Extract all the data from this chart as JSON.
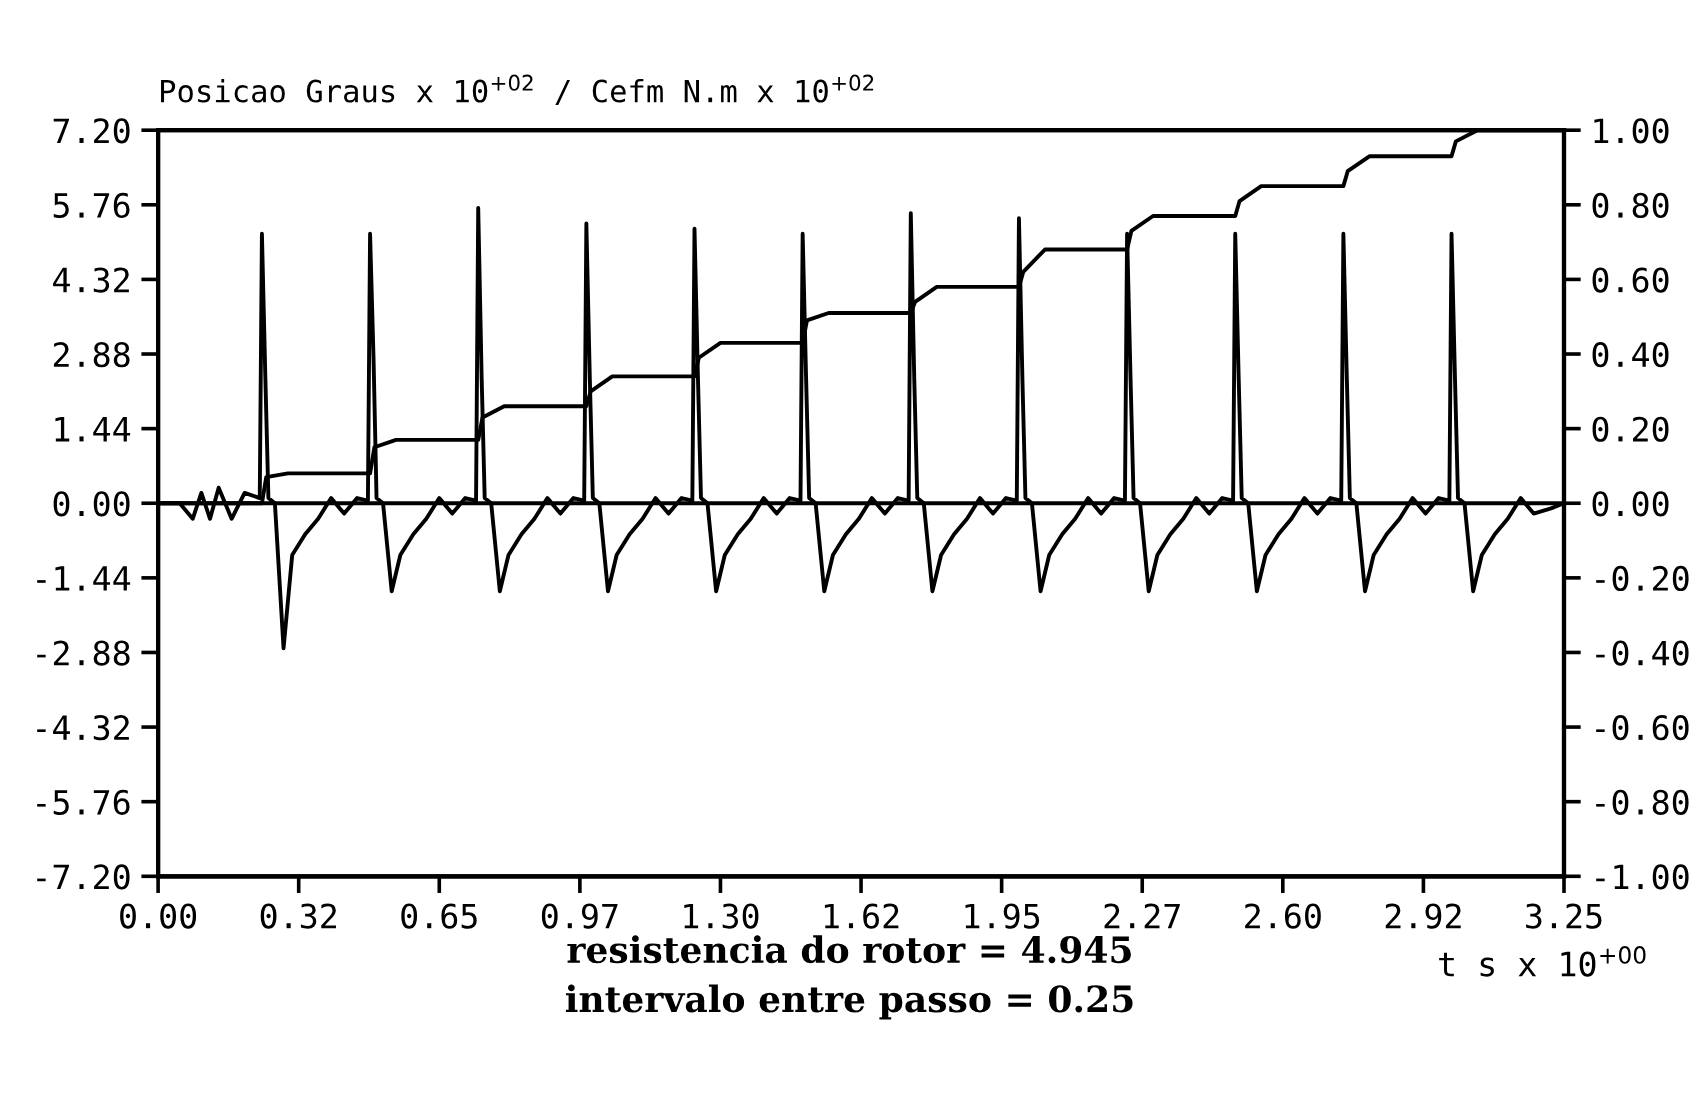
{
  "chart_data": {
    "type": "line",
    "title": "Posicao Graus x 10$^{+02}$ / Cefm N.m x 10$^{+02}$",
    "xlabel": "t s x 10$^{+00}$",
    "annotations": [
      "resistencia do rotor = 4.945",
      "intervalo entre passo = 0.25"
    ],
    "xlim": [
      0,
      3.25
    ],
    "xticks": [
      {
        "value": 0,
        "label": "0.00"
      },
      {
        "value": 0.325,
        "label": "0.32"
      },
      {
        "value": 0.65,
        "label": "0.65"
      },
      {
        "value": 0.975,
        "label": "0.97"
      },
      {
        "value": 1.3,
        "label": "1.30"
      },
      {
        "value": 1.625,
        "label": "1.62"
      },
      {
        "value": 1.95,
        "label": "1.95"
      },
      {
        "value": 2.275,
        "label": "2.27"
      },
      {
        "value": 2.6,
        "label": "2.60"
      },
      {
        "value": 2.925,
        "label": "2.92"
      },
      {
        "value": 3.25,
        "label": "3.25"
      }
    ],
    "ylim": [
      -7.2,
      7.2
    ],
    "yticks": [
      {
        "value": 7.2,
        "label": "7.20"
      },
      {
        "value": 5.76,
        "label": "5.76"
      },
      {
        "value": 4.32,
        "label": "4.32"
      },
      {
        "value": 2.88,
        "label": "2.88"
      },
      {
        "value": 1.44,
        "label": "1.44"
      },
      {
        "value": 0,
        "label": "0.00"
      },
      {
        "value": -1.44,
        "label": "-1.44"
      },
      {
        "value": -2.88,
        "label": "-2.88"
      },
      {
        "value": -4.32,
        "label": "-4.32"
      },
      {
        "value": -5.76,
        "label": "-5.76"
      },
      {
        "value": -7.2,
        "label": "-7.20"
      }
    ],
    "y2lim": [
      -1,
      1
    ],
    "y2ticks": [
      {
        "value": 1,
        "label": "1.00"
      },
      {
        "value": 0.8,
        "label": "0.80"
      },
      {
        "value": 0.6,
        "label": "0.60"
      },
      {
        "value": 0.4,
        "label": "0.40"
      },
      {
        "value": 0.2,
        "label": "0.20"
      },
      {
        "value": 0,
        "label": "0.00"
      },
      {
        "value": -0.2,
        "label": "-0.20"
      },
      {
        "value": -0.4,
        "label": "-0.40"
      },
      {
        "value": -0.6,
        "label": "-0.60"
      },
      {
        "value": -0.8,
        "label": "-0.80"
      },
      {
        "value": -1,
        "label": "-1.00"
      }
    ],
    "grid": false,
    "legend": false,
    "marker": "none",
    "line_style": "solid",
    "ref_lines": [
      {
        "axis": "y",
        "value": 0,
        "color": "#000000"
      }
    ],
    "series": [
      {
        "color": "#000000",
        "axis": "y",
        "x": [
          0,
          0.05,
          0.08,
          0.1,
          0.12,
          0.14,
          0.17,
          0.2,
          0.235,
          0.24,
          0.248,
          0.255,
          0.27,
          0.29,
          0.31,
          0.34,
          0.37,
          0.4,
          0.43,
          0.46,
          0.485,
          0.49,
          0.498,
          0.505,
          0.52,
          0.54,
          0.56,
          0.59,
          0.62,
          0.65,
          0.68,
          0.71,
          0.735,
          0.74,
          0.748,
          0.755,
          0.77,
          0.79,
          0.81,
          0.84,
          0.87,
          0.9,
          0.93,
          0.96,
          0.985,
          0.99,
          0.998,
          1.005,
          1.02,
          1.04,
          1.06,
          1.09,
          1.12,
          1.15,
          1.18,
          1.21,
          1.235,
          1.24,
          1.248,
          1.255,
          1.27,
          1.29,
          1.31,
          1.34,
          1.37,
          1.4,
          1.43,
          1.46,
          1.485,
          1.49,
          1.498,
          1.505,
          1.52,
          1.54,
          1.56,
          1.59,
          1.62,
          1.65,
          1.68,
          1.71,
          1.735,
          1.74,
          1.748,
          1.755,
          1.77,
          1.79,
          1.81,
          1.84,
          1.87,
          1.9,
          1.93,
          1.96,
          1.985,
          1.99,
          1.998,
          2.005,
          2.02,
          2.04,
          2.06,
          2.09,
          2.12,
          2.15,
          2.18,
          2.21,
          2.235,
          2.24,
          2.248,
          2.255,
          2.27,
          2.29,
          2.31,
          2.34,
          2.37,
          2.4,
          2.43,
          2.46,
          2.485,
          2.49,
          2.498,
          2.505,
          2.52,
          2.54,
          2.56,
          2.59,
          2.62,
          2.65,
          2.68,
          2.71,
          2.735,
          2.74,
          2.748,
          2.755,
          2.77,
          2.79,
          2.81,
          2.84,
          2.87,
          2.9,
          2.93,
          2.96,
          2.985,
          2.99,
          2.998,
          3.005,
          3.02,
          3.04,
          3.06,
          3.09,
          3.12,
          3.15,
          3.18,
          3.22,
          3.25
        ],
        "values": [
          0,
          0,
          -0.3,
          0.2,
          -0.3,
          0.3,
          -0.3,
          0.2,
          0.1,
          5.2,
          2.4,
          0.1,
          0.0,
          -2.8,
          -1.0,
          -0.6,
          -0.3,
          0.1,
          -0.2,
          0.1,
          0.05,
          5.2,
          2.8,
          0.1,
          0.0,
          -1.7,
          -1.0,
          -0.6,
          -0.3,
          0.1,
          -0.2,
          0.1,
          0.05,
          5.7,
          2.4,
          0.1,
          0.0,
          -1.7,
          -1.0,
          -0.6,
          -0.3,
          0.1,
          -0.2,
          0.1,
          0.05,
          5.4,
          2.4,
          0.1,
          0.0,
          -1.7,
          -1.0,
          -0.6,
          -0.3,
          0.1,
          -0.2,
          0.1,
          0.05,
          5.3,
          2.4,
          0.1,
          0.0,
          -1.7,
          -1.0,
          -0.6,
          -0.3,
          0.1,
          -0.2,
          0.1,
          0.05,
          5.2,
          2.4,
          0.1,
          0.0,
          -1.7,
          -1.0,
          -0.6,
          -0.3,
          0.1,
          -0.2,
          0.1,
          0.05,
          5.6,
          2.4,
          0.1,
          0.0,
          -1.7,
          -1.0,
          -0.6,
          -0.3,
          0.1,
          -0.2,
          0.1,
          0.05,
          5.5,
          2.4,
          0.1,
          0.0,
          -1.7,
          -1.0,
          -0.6,
          -0.3,
          0.1,
          -0.2,
          0.1,
          0.05,
          5.2,
          2.4,
          0.1,
          0.0,
          -1.7,
          -1.0,
          -0.6,
          -0.3,
          0.1,
          -0.2,
          0.1,
          0.05,
          5.2,
          2.4,
          0.1,
          0.0,
          -1.7,
          -1.0,
          -0.6,
          -0.3,
          0.1,
          -0.2,
          0.1,
          0.05,
          5.2,
          2.4,
          0.1,
          0.0,
          -1.7,
          -1.0,
          -0.6,
          -0.3,
          0.1,
          -0.2,
          0.1,
          0.05,
          5.2,
          2.4,
          0.1,
          0.0,
          -1.7,
          -1.0,
          -0.6,
          -0.3,
          0.1,
          -0.2,
          -0.1,
          0
        ]
      },
      {
        "color": "#000000",
        "axis": "y2",
        "x": [
          0,
          0.24,
          0.25,
          0.3,
          0.49,
          0.5,
          0.55,
          0.74,
          0.75,
          0.8,
          0.99,
          1.0,
          1.05,
          1.24,
          1.25,
          1.3,
          1.49,
          1.5,
          1.55,
          1.74,
          1.75,
          1.8,
          1.99,
          2.0,
          2.05,
          2.24,
          2.25,
          2.3,
          2.49,
          2.5,
          2.55,
          2.74,
          2.75,
          2.8,
          2.99,
          3.0,
          3.05,
          3.25
        ],
        "values": [
          0,
          0,
          0.07,
          0.08,
          0.08,
          0.15,
          0.17,
          0.17,
          0.23,
          0.26,
          0.26,
          0.3,
          0.34,
          0.34,
          0.39,
          0.43,
          0.43,
          0.49,
          0.51,
          0.51,
          0.54,
          0.58,
          0.58,
          0.62,
          0.68,
          0.68,
          0.73,
          0.77,
          0.77,
          0.81,
          0.85,
          0.85,
          0.89,
          0.93,
          0.93,
          0.97,
          1.0,
          1.0
        ]
      }
    ]
  }
}
